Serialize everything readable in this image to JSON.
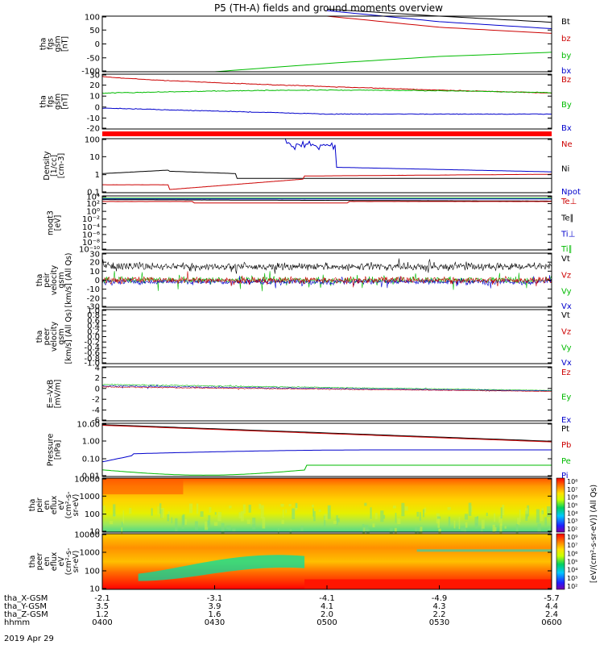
{
  "title": "P5 (TH-A) fields and ground moments overview",
  "panels": [
    {
      "id": "fgs_gsm",
      "ylabel": [
        "tha",
        "fgs",
        "gsm",
        "[nT]"
      ],
      "yticks": [
        "100",
        "50",
        "0",
        "-50",
        "-100"
      ],
      "legend": [
        {
          "label": "Bt",
          "color": "#000000"
        },
        {
          "label": "bz",
          "color": "#cc0000"
        },
        {
          "label": "by",
          "color": "#00bb00"
        },
        {
          "label": "bx",
          "color": "#0000cc"
        }
      ]
    },
    {
      "id": "fgs_gsm_dsl",
      "ylabel": [
        "tha",
        "fgs",
        "gsm",
        "[nT]"
      ],
      "yticks": [
        "30",
        "20",
        "10",
        "0",
        "-10",
        "-20"
      ],
      "legend": [
        {
          "label": "Bz",
          "color": "#cc0000"
        },
        {
          "label": "By",
          "color": "#00bb00"
        },
        {
          "label": "Bx",
          "color": "#0000cc"
        }
      ]
    },
    {
      "id": "density",
      "ylabel": [
        "Density",
        "[1/cc]",
        "[cm-3]"
      ],
      "yticks": [
        "100",
        "10",
        "1",
        "0.1"
      ],
      "legend": [
        {
          "label": "Ne",
          "color": "#cc0000"
        },
        {
          "label": "Ni",
          "color": "#000000"
        },
        {
          "label": "Npot",
          "color": "#0000cc"
        }
      ]
    },
    {
      "id": "temperature",
      "ylabel": [
        "moqt3",
        "[eV]"
      ],
      "yticks": [
        "10⁴",
        "10²",
        "10⁰",
        "10⁻²",
        "10⁻⁴",
        "10⁻⁶",
        "10⁻⁸",
        "10⁻¹⁰"
      ],
      "legend": [
        {
          "label": "Te⊥",
          "color": "#cc0000"
        },
        {
          "label": "Te∥",
          "color": "#000000"
        },
        {
          "label": "Ti⊥",
          "color": "#0000cc"
        },
        {
          "label": "Ti∥",
          "color": "#00bb00"
        }
      ]
    },
    {
      "id": "peir_velocity",
      "ylabel": [
        "tha",
        "peir",
        "velocity",
        "gsm",
        "[km/s] (All Qs)"
      ],
      "yticks": [
        "30",
        "20",
        "10",
        "0",
        "-10",
        "-20",
        "-30"
      ],
      "legend": [
        {
          "label": "Vt",
          "color": "#000000"
        },
        {
          "label": "Vz",
          "color": "#cc0000"
        },
        {
          "label": "Vy",
          "color": "#00bb00"
        },
        {
          "label": "Vx",
          "color": "#0000cc"
        }
      ]
    },
    {
      "id": "peer_velocity",
      "ylabel": [
        "tha",
        "peer",
        "velocity",
        "gsm",
        "[km/s] (All Qs)"
      ],
      "yticks": [
        "1.0",
        "0.8",
        "0.6",
        "0.4",
        "0.2",
        "0.0",
        "-0.2",
        "-0.4",
        "-0.6",
        "-0.8",
        "-1.0"
      ],
      "legend": [
        {
          "label": "Vt",
          "color": "#000000"
        },
        {
          "label": "Vz",
          "color": "#cc0000"
        },
        {
          "label": "Vy",
          "color": "#00bb00"
        },
        {
          "label": "Vx",
          "color": "#0000cc"
        }
      ]
    },
    {
      "id": "efield",
      "ylabel": [
        "E=-VxB",
        "[mV/m]"
      ],
      "yticks": [
        "4",
        "2",
        "0",
        "-2",
        "-4",
        "-6"
      ],
      "legend": [
        {
          "label": "Ez",
          "color": "#cc0000"
        },
        {
          "label": "Ey",
          "color": "#00bb00"
        },
        {
          "label": "Ex",
          "color": "#0000cc"
        }
      ]
    },
    {
      "id": "pressure",
      "ylabel": [
        "Pressure",
        "[nPa]"
      ],
      "yticks": [
        "10.00",
        "1.00",
        "0.10",
        "0.01"
      ],
      "legend": [
        {
          "label": "Pt",
          "color": "#000000"
        },
        {
          "label": "Pb",
          "color": "#cc0000"
        },
        {
          "label": "Pe",
          "color": "#00bb00"
        },
        {
          "label": "Pi",
          "color": "#0000cc"
        }
      ]
    },
    {
      "id": "peir_spec",
      "ylabel": [
        "tha",
        "peir",
        "en",
        "eflux",
        "eV",
        "(cm²-s-",
        "sr-eV)"
      ],
      "yticks": [
        "10000",
        "1000",
        "100",
        "10"
      ]
    },
    {
      "id": "peer_spec",
      "ylabel": [
        "tha",
        "peer",
        "en",
        "eflux",
        "eV",
        "(cm²-s-",
        "sr-eV)"
      ],
      "yticks": [
        "10000",
        "1000",
        "100",
        "10"
      ]
    }
  ],
  "colorbar": {
    "label": "[eV/(cm²-s-sr-eV)] (All Qs)",
    "peir_ticks": [
      "10⁸",
      "10⁷",
      "10⁶",
      "10⁵",
      "10⁴",
      "10³",
      "10²"
    ],
    "peer_ticks": [
      "10⁹",
      "10⁷",
      "10⁶",
      "10⁵",
      "10⁴",
      "10³",
      "10²"
    ]
  },
  "xaxis": {
    "rows": [
      {
        "label": "tha_X-GSM",
        "values": [
          "-2.1",
          "-3.1",
          "-4.1",
          "-4.9",
          "-5.7"
        ]
      },
      {
        "label": "tha_Y-GSM",
        "values": [
          "3.5",
          "3.9",
          "4.1",
          "4.3",
          "4.4"
        ]
      },
      {
        "label": "tha_Z-GSM",
        "values": [
          "1.2",
          "1.6",
          "2.0",
          "2.2",
          "2.4"
        ]
      },
      {
        "label": "hhmm",
        "values": [
          "0400",
          "0430",
          "0500",
          "0530",
          "0600"
        ]
      }
    ],
    "date": "2019 Apr 29"
  },
  "chart_data": {
    "type": "line",
    "time_hhmm": [
      "0400",
      "0430",
      "0500",
      "0530",
      "0600"
    ],
    "series": [
      {
        "name": "Bt",
        "values": [
          null,
          null,
          125,
          100,
          78
        ]
      },
      {
        "name": "bz",
        "values": [
          null,
          null,
          100,
          60,
          38
        ]
      },
      {
        "name": "by",
        "values": [
          null,
          -100,
          -70,
          -45,
          -30
        ]
      },
      {
        "name": "bx",
        "values": [
          null,
          null,
          120,
          80,
          55
        ]
      }
    ]
  }
}
